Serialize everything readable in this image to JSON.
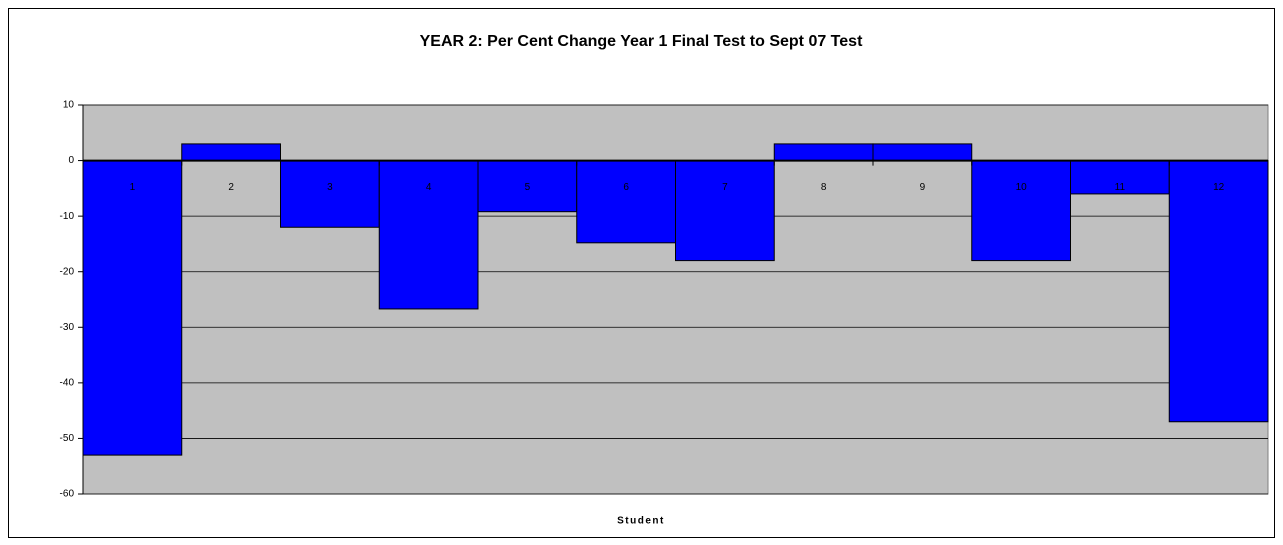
{
  "chart_data": {
    "type": "bar",
    "title": "YEAR 2:  Per Cent Change Year 1 Final Test to Sept 07 Test",
    "x_label": "Student",
    "categories": [
      "1",
      "2",
      "3",
      "4",
      "5",
      "6",
      "7",
      "8",
      "9",
      "10",
      "11",
      "12"
    ],
    "values": [
      -53,
      3,
      -12,
      -26.7,
      -9.2,
      -14.8,
      -18,
      3,
      3,
      -18,
      -6,
      -47
    ],
    "color": "#0000ff",
    "ylim": [
      -60,
      10
    ],
    "yticks": [
      -60,
      -50,
      -40,
      -30,
      -20,
      -10,
      0,
      10
    ],
    "grid": true
  }
}
